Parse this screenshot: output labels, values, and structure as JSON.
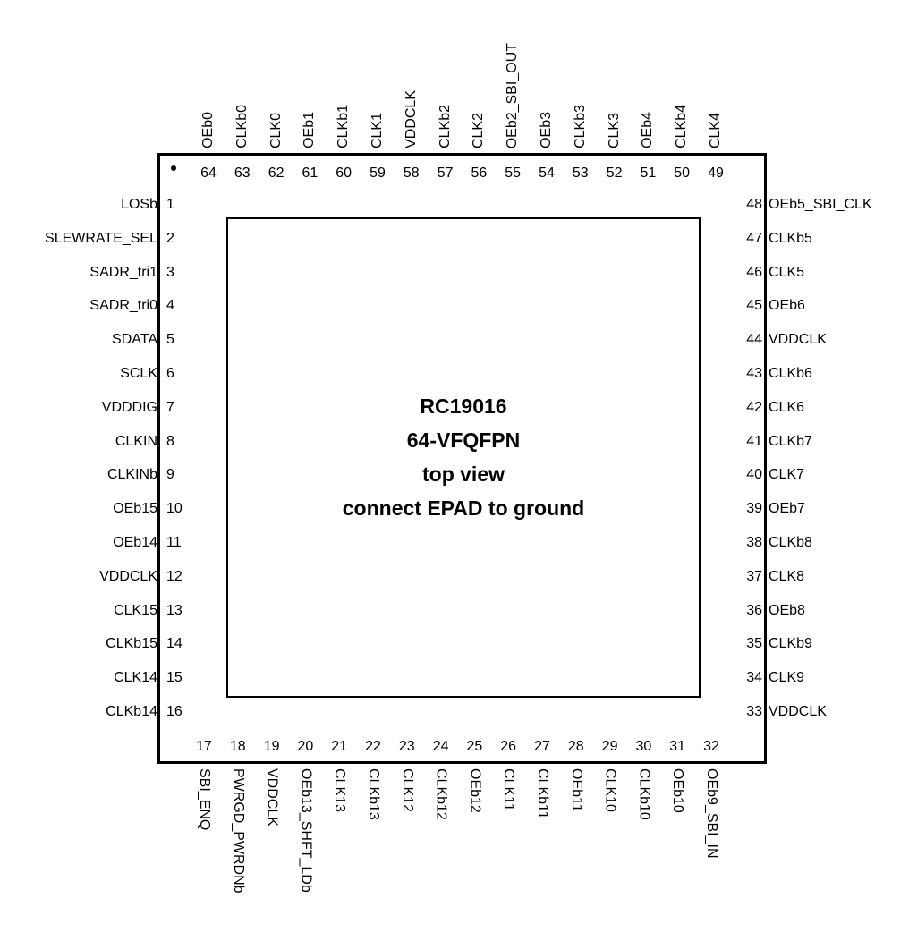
{
  "package": {
    "part": "RC19016",
    "package_name": "64-VFQFPN",
    "view": "top view",
    "note": "connect EPAD to ground"
  },
  "pins": {
    "left": [
      {
        "num": "1",
        "name": "LOSb"
      },
      {
        "num": "2",
        "name": "SLEWRATE_SEL"
      },
      {
        "num": "3",
        "name": "SADR_tri1"
      },
      {
        "num": "4",
        "name": "SADR_tri0"
      },
      {
        "num": "5",
        "name": "SDATA"
      },
      {
        "num": "6",
        "name": "SCLK"
      },
      {
        "num": "7",
        "name": "VDDDIG"
      },
      {
        "num": "8",
        "name": "CLKIN"
      },
      {
        "num": "9",
        "name": "CLKINb"
      },
      {
        "num": "10",
        "name": "OEb15"
      },
      {
        "num": "11",
        "name": "OEb14"
      },
      {
        "num": "12",
        "name": "VDDCLK"
      },
      {
        "num": "13",
        "name": "CLK15"
      },
      {
        "num": "14",
        "name": "CLKb15"
      },
      {
        "num": "15",
        "name": "CLK14"
      },
      {
        "num": "16",
        "name": "CLKb14"
      }
    ],
    "bottom": [
      {
        "num": "17",
        "name": "SBI_ENQ"
      },
      {
        "num": "18",
        "name": "PWRGD_PWRDNb"
      },
      {
        "num": "19",
        "name": "VDDCLK"
      },
      {
        "num": "20",
        "name": "OEb13_SHFT_LDb"
      },
      {
        "num": "21",
        "name": "CLK13"
      },
      {
        "num": "22",
        "name": "CLKb13"
      },
      {
        "num": "23",
        "name": "CLK12"
      },
      {
        "num": "24",
        "name": "CLKb12"
      },
      {
        "num": "25",
        "name": "OEb12"
      },
      {
        "num": "26",
        "name": "CLK11"
      },
      {
        "num": "27",
        "name": "CLKb11"
      },
      {
        "num": "28",
        "name": "OEb11"
      },
      {
        "num": "29",
        "name": "CLK10"
      },
      {
        "num": "30",
        "name": "CLKb10"
      },
      {
        "num": "31",
        "name": "OEb10"
      },
      {
        "num": "32",
        "name": "OEb9_SBI_IN"
      }
    ],
    "right": [
      {
        "num": "48",
        "name": "OEb5_SBI_CLK"
      },
      {
        "num": "47",
        "name": "CLKb5"
      },
      {
        "num": "46",
        "name": "CLK5"
      },
      {
        "num": "45",
        "name": "OEb6"
      },
      {
        "num": "44",
        "name": "VDDCLK"
      },
      {
        "num": "43",
        "name": "CLKb6"
      },
      {
        "num": "42",
        "name": "CLK6"
      },
      {
        "num": "41",
        "name": "CLKb7"
      },
      {
        "num": "40",
        "name": "CLK7"
      },
      {
        "num": "39",
        "name": "OEb7"
      },
      {
        "num": "38",
        "name": "CLKb8"
      },
      {
        "num": "37",
        "name": "CLK8"
      },
      {
        "num": "36",
        "name": "OEb8"
      },
      {
        "num": "35",
        "name": "CLKb9"
      },
      {
        "num": "34",
        "name": "CLK9"
      },
      {
        "num": "33",
        "name": "VDDCLK"
      }
    ],
    "top": [
      {
        "num": "64",
        "name": "OEb0"
      },
      {
        "num": "63",
        "name": "CLKb0"
      },
      {
        "num": "62",
        "name": "CLK0"
      },
      {
        "num": "61",
        "name": "OEb1"
      },
      {
        "num": "60",
        "name": "CLKb1"
      },
      {
        "num": "59",
        "name": "CLK1"
      },
      {
        "num": "58",
        "name": "VDDCLK"
      },
      {
        "num": "57",
        "name": "CLKb2"
      },
      {
        "num": "56",
        "name": "CLK2"
      },
      {
        "num": "55",
        "name": "OEb2_SBI_OUT"
      },
      {
        "num": "54",
        "name": "OEb3"
      },
      {
        "num": "53",
        "name": "CLKb3"
      },
      {
        "num": "52",
        "name": "CLK3"
      },
      {
        "num": "51",
        "name": "OEb4"
      },
      {
        "num": "50",
        "name": "CLKb4"
      },
      {
        "num": "49",
        "name": "CLK4"
      }
    ]
  }
}
